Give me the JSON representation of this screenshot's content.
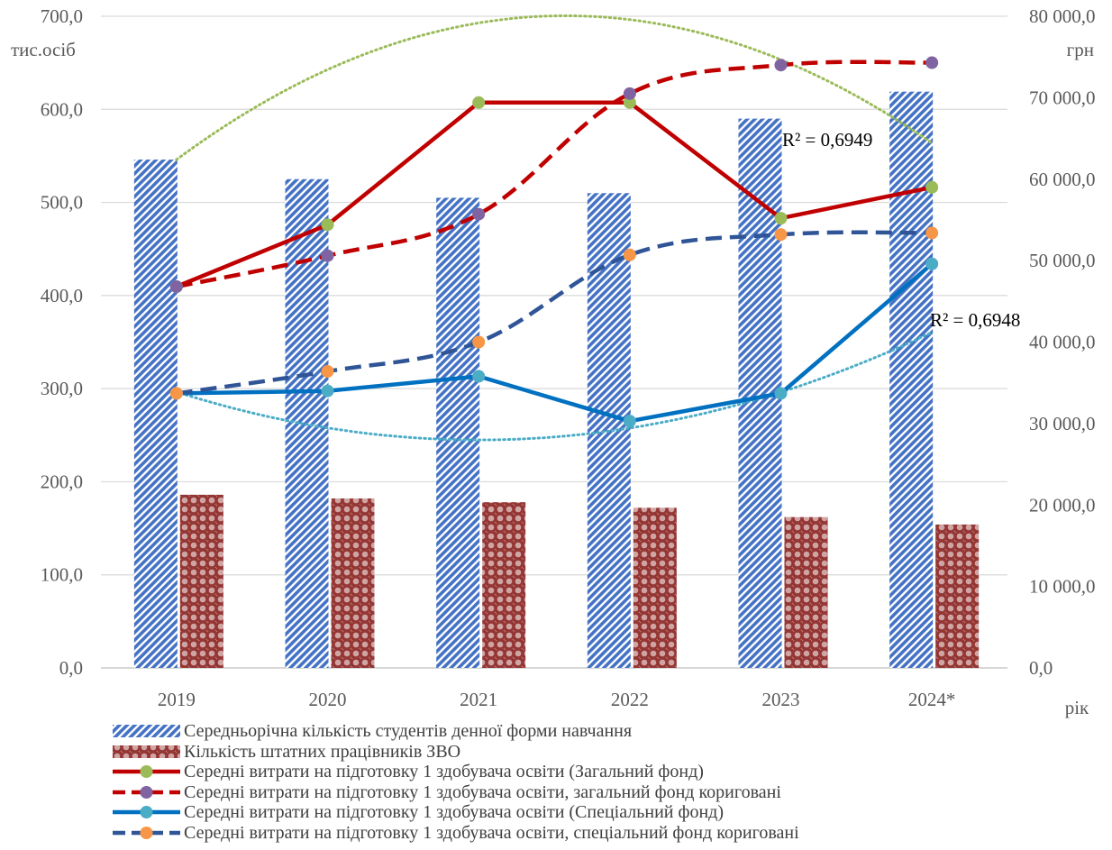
{
  "chart_data": {
    "type": "bar",
    "categories": [
      "2019",
      "2020",
      "2021",
      "2022",
      "2023",
      "2024*"
    ],
    "left_axis": {
      "unit_label": "тис.осіб",
      "min": 0,
      "max": 700,
      "step": 100,
      "tick_labels": [
        "0,0",
        "100,0",
        "200,0",
        "300,0",
        "400,0",
        "500,0",
        "600,0",
        "700,0"
      ]
    },
    "right_axis": {
      "unit_label": "грн",
      "min": 0,
      "max": 80000,
      "step": 10000,
      "tick_labels": [
        "0,0",
        "10 000,0",
        "20 000,0",
        "30 000,0",
        "40 000,0",
        "50 000,0",
        "60 000,0",
        "70 000,0",
        "80 000,0"
      ]
    },
    "xlabel": "рік",
    "grid": "horizontal",
    "legend_position": "bottom",
    "bar_series": [
      {
        "name": "Середньорічна кількість студентів денної форми навчання",
        "axis": "left",
        "pattern": "diagonal-stripes",
        "color": "#4472C4",
        "values": [
          546,
          525,
          505,
          510,
          590,
          619
        ]
      },
      {
        "name": "Кількість штатних працівників ЗВО",
        "axis": "left",
        "pattern": "dots",
        "color": "#943634",
        "values": [
          186,
          182,
          178,
          172,
          162,
          154
        ]
      }
    ],
    "line_series": [
      {
        "name": "Середні витрати на підготовку 1 здобувача освіти (Загальний фонд)",
        "axis": "right",
        "color": "#C00000",
        "marker_color": "#9BBB59",
        "dashed": false,
        "values": [
          46800,
          54400,
          69400,
          69400,
          55200,
          59000
        ]
      },
      {
        "name": "Середні витрати на підготовку 1 здобувача освіти, загальний фонд кориговані",
        "axis": "right",
        "color": "#C00000",
        "marker_color": "#8064A2",
        "dashed": true,
        "values": [
          46800,
          50600,
          55700,
          70500,
          74000,
          74300
        ]
      },
      {
        "name": "Середні витрати на підготовку 1 здобувача освіти (Спеціальний фонд)",
        "axis": "right",
        "color": "#0070C0",
        "marker_color": "#4BACC6",
        "dashed": false,
        "values": [
          33700,
          34000,
          35800,
          30300,
          33700,
          49600
        ]
      },
      {
        "name": "Середні витрати на підготовку 1 здобувача освіти, спеціальний фонд кориговані",
        "axis": "right",
        "color": "#2F5597",
        "marker_color": "#F79646",
        "dashed": true,
        "values": [
          33700,
          36400,
          40000,
          50700,
          53200,
          53400
        ]
      }
    ],
    "trendlines": [
      {
        "of_series": 0,
        "type": "polynomial",
        "color": "#9BBB59",
        "r2_label": "R² = 0,6949",
        "coefficients": [
          46010,
          19043,
          -2662.5
        ]
      },
      {
        "of_series": 2,
        "type": "polynomial",
        "color": "#4BACC6",
        "r2_label": "R² = 0,6948",
        "coefficients": [
          41250,
          -8836,
          1471.4
        ]
      }
    ]
  }
}
